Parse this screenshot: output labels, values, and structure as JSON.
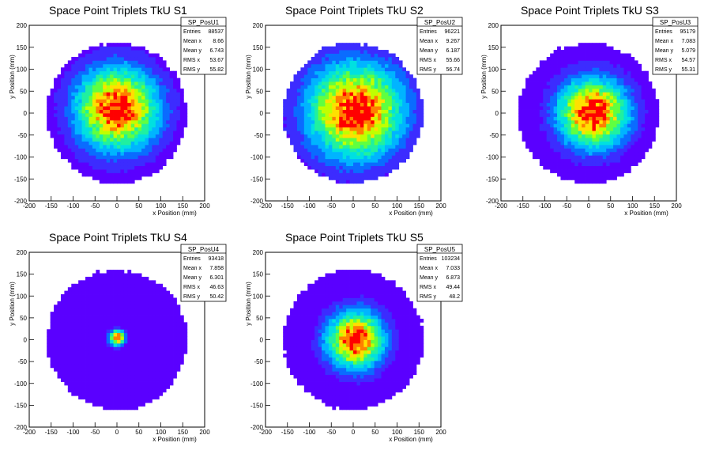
{
  "chart_data": [
    {
      "type": "heatmap",
      "title": "Space Point Triplets TkU S1",
      "xlabel": "x Position (mm)",
      "ylabel": "y Position (mm)",
      "xlim": [
        -200,
        200
      ],
      "ylim": [
        -200,
        200
      ],
      "xticks": [
        -200,
        -150,
        -100,
        -50,
        0,
        50,
        100,
        150,
        200
      ],
      "yticks": [
        -200,
        -150,
        -100,
        -50,
        0,
        50,
        100,
        150,
        200
      ],
      "stats": {
        "name": "SP_PosU1",
        "rows": [
          {
            "label": "Entries",
            "value": "88537"
          },
          {
            "label": "Mean x",
            "value": "8.66"
          },
          {
            "label": "Mean y",
            "value": "6.743"
          },
          {
            "label": "RMS x",
            "value": "53.67"
          },
          {
            "label": "RMS y",
            "value": "55.82"
          }
        ]
      },
      "hotspot": {
        "x": 0,
        "y": 10
      },
      "radius": 160,
      "spread": 65
    },
    {
      "type": "heatmap",
      "title": "Space Point Triplets TkU S2",
      "xlabel": "x Position (mm)",
      "ylabel": "y Position (mm)",
      "xlim": [
        -200,
        200
      ],
      "ylim": [
        -200,
        200
      ],
      "xticks": [
        -200,
        -150,
        -100,
        -50,
        0,
        50,
        100,
        150,
        200
      ],
      "yticks": [
        -200,
        -150,
        -100,
        -50,
        0,
        50,
        100,
        150,
        200
      ],
      "stats": {
        "name": "SP_PosU2",
        "rows": [
          {
            "label": "Entries",
            "value": "96221"
          },
          {
            "label": "Mean x",
            "value": "9.267"
          },
          {
            "label": "Mean y",
            "value": "6.187"
          },
          {
            "label": "RMS x",
            "value": "55.66"
          },
          {
            "label": "RMS y",
            "value": "56.74"
          }
        ]
      },
      "hotspot": {
        "x": 5,
        "y": 5
      },
      "radius": 160,
      "spread": 75
    },
    {
      "type": "heatmap",
      "title": "Space Point Triplets TkU S3",
      "xlabel": "x Position (mm)",
      "ylabel": "y Position (mm)",
      "xlim": [
        -200,
        200
      ],
      "ylim": [
        -200,
        200
      ],
      "xticks": [
        -200,
        -150,
        -100,
        -50,
        0,
        50,
        100,
        150,
        200
      ],
      "yticks": [
        -200,
        -150,
        -100,
        -50,
        0,
        50,
        100,
        150,
        200
      ],
      "stats": {
        "name": "SP_PosU3",
        "rows": [
          {
            "label": "Entries",
            "value": "95179"
          },
          {
            "label": "Mean x",
            "value": "7.083"
          },
          {
            "label": "Mean y",
            "value": "5.079"
          },
          {
            "label": "RMS x",
            "value": "54.57"
          },
          {
            "label": "RMS y",
            "value": "55.31"
          }
        ]
      },
      "hotspot": {
        "x": 10,
        "y": 0
      },
      "radius": 160,
      "spread": 55
    },
    {
      "type": "heatmap",
      "title": "Space Point Triplets TkU S4",
      "xlabel": "x Position (mm)",
      "ylabel": "y Position (mm)",
      "xlim": [
        -200,
        200
      ],
      "ylim": [
        -200,
        200
      ],
      "xticks": [
        -200,
        -150,
        -100,
        -50,
        0,
        50,
        100,
        150,
        200
      ],
      "yticks": [
        -200,
        -150,
        -100,
        -50,
        0,
        50,
        100,
        150,
        200
      ],
      "stats": {
        "name": "SP_PosU4",
        "rows": [
          {
            "label": "Entries",
            "value": "93418"
          },
          {
            "label": "Mean x",
            "value": "7.858"
          },
          {
            "label": "Mean y",
            "value": "6.301"
          },
          {
            "label": "RMS x",
            "value": "46.63"
          },
          {
            "label": "RMS y",
            "value": "50.42"
          }
        ]
      },
      "hotspot": {
        "x": 0,
        "y": 5
      },
      "radius": 160,
      "spread": 12
    },
    {
      "type": "heatmap",
      "title": "Space Point Triplets TkU S5",
      "xlabel": "x Position (mm)",
      "ylabel": "y Position (mm)",
      "xlim": [
        -200,
        200
      ],
      "ylim": [
        -200,
        200
      ],
      "xticks": [
        -200,
        -150,
        -100,
        -50,
        0,
        50,
        100,
        150,
        200
      ],
      "yticks": [
        -200,
        -150,
        -100,
        -50,
        0,
        50,
        100,
        150,
        200
      ],
      "stats": {
        "name": "SP_PosU5",
        "rows": [
          {
            "label": "Entries",
            "value": "103234"
          },
          {
            "label": "Mean x",
            "value": "7.033"
          },
          {
            "label": "Mean y",
            "value": "6.873"
          },
          {
            "label": "RMS x",
            "value": "49.44"
          },
          {
            "label": "RMS y",
            "value": "48.2"
          }
        ]
      },
      "hotspot": {
        "x": 5,
        "y": 0
      },
      "radius": 160,
      "spread": 45
    }
  ]
}
